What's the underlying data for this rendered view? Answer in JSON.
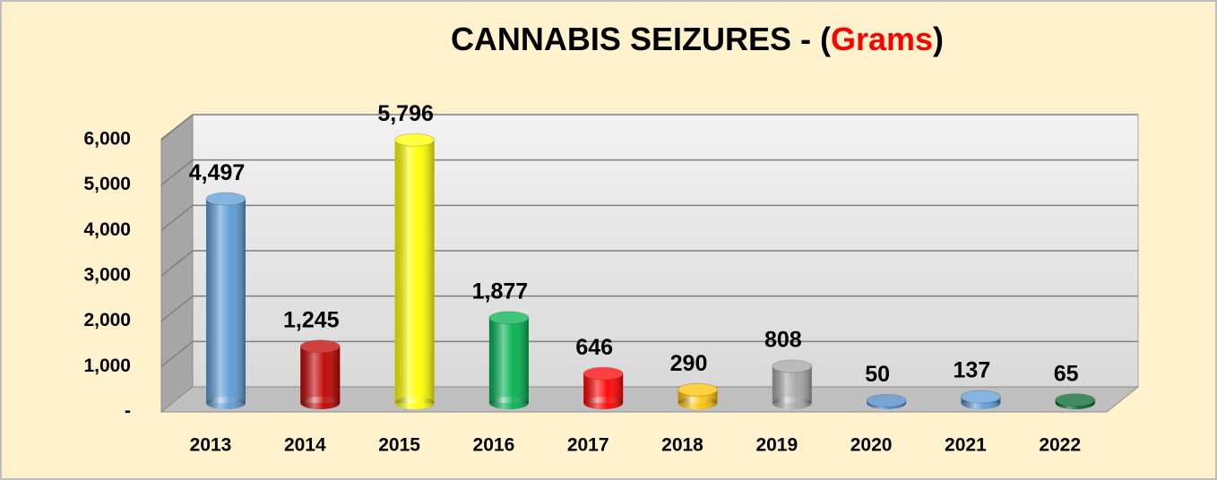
{
  "chart_data": {
    "type": "bar",
    "title": [
      {
        "text": "CANNABIS SEIZURES - (",
        "color": "#000000"
      },
      {
        "text": "Grams",
        "color": "#ff0000"
      },
      {
        "text": ")",
        "color": "#000000"
      }
    ],
    "categories": [
      "2013",
      "2014",
      "2015",
      "2016",
      "2017",
      "2018",
      "2019",
      "2020",
      "2021",
      "2022"
    ],
    "values": [
      4497,
      1245,
      5796,
      1877,
      646,
      290,
      808,
      50,
      137,
      65
    ],
    "value_labels": [
      "4,497",
      "1,245",
      "5,796",
      "1,877",
      "646",
      "290",
      "808",
      "50",
      "137",
      "65"
    ],
    "colors": [
      "#5b9bd5",
      "#c00000",
      "#ffff00",
      "#00b050",
      "#ff0000",
      "#ffc000",
      "#a5a5a5",
      "#4a86c5",
      "#5b9bd5",
      "#00662b"
    ],
    "ylim": [
      0,
      6000
    ],
    "yticks": [
      {
        "value": 0,
        "label": "-"
      },
      {
        "value": 1000,
        "label": "1,000"
      },
      {
        "value": 2000,
        "label": "2,000"
      },
      {
        "value": 3000,
        "label": "3,000"
      },
      {
        "value": 4000,
        "label": "4,000"
      },
      {
        "value": 5000,
        "label": "5,000"
      },
      {
        "value": 6000,
        "label": "6,000"
      }
    ],
    "grid": true
  }
}
